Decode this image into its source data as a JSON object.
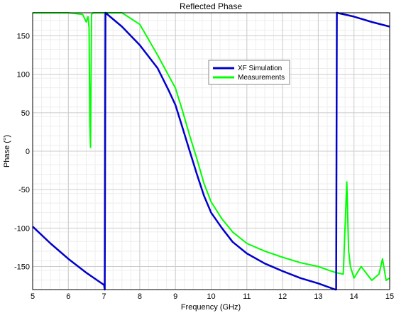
{
  "chart_data": {
    "type": "line",
    "title": "Reflected Phase",
    "xlabel": "Frequency (GHz)",
    "ylabel": "Phase (°)",
    "xlim": [
      5,
      15
    ],
    "ylim": [
      -180,
      180
    ],
    "xticks": [
      5,
      6,
      7,
      8,
      9,
      10,
      11,
      12,
      13,
      14,
      15
    ],
    "yticks": [
      150,
      100,
      50,
      0,
      -50,
      -100,
      -150
    ],
    "grid": true,
    "legend_position": "upper-center-right",
    "series": [
      {
        "name": "XF Simulation",
        "color": "#0000cc",
        "x": [
          5.0,
          5.5,
          6.0,
          6.5,
          7.0,
          7.02,
          7.04,
          7.5,
          8.0,
          8.5,
          8.8,
          9.0,
          9.2,
          9.4,
          9.6,
          9.8,
          10.0,
          10.3,
          10.6,
          11.0,
          11.5,
          12.0,
          12.5,
          13.0,
          13.48,
          13.5,
          13.52,
          14.0,
          14.5,
          15.0
        ],
        "y": [
          -98,
          -120,
          -140,
          -158,
          -174,
          -180,
          180,
          162,
          138,
          108,
          80,
          60,
          30,
          0,
          -30,
          -58,
          -80,
          -100,
          -118,
          -133,
          -146,
          -156,
          -165,
          -172,
          -180,
          -180,
          180,
          175,
          168,
          162
        ]
      },
      {
        "name": "Measurements",
        "color": "#00ff00",
        "x": [
          5.0,
          5.5,
          6.0,
          6.4,
          6.5,
          6.55,
          6.58,
          6.6,
          6.62,
          6.65,
          6.7,
          7.0,
          7.5,
          8.0,
          8.5,
          9.0,
          9.2,
          9.4,
          9.6,
          9.8,
          10.0,
          10.3,
          10.6,
          11.0,
          11.5,
          12.0,
          12.5,
          13.0,
          13.3,
          13.5,
          13.7,
          13.8,
          13.85,
          13.9,
          14.0,
          14.2,
          14.5,
          14.7,
          14.8,
          14.9,
          15.0
        ],
        "y": [
          180,
          180,
          180,
          178,
          168,
          175,
          160,
          40,
          5,
          178,
          180,
          180,
          180,
          165,
          125,
          82,
          52,
          20,
          -10,
          -42,
          -66,
          -88,
          -105,
          -120,
          -130,
          -138,
          -145,
          -150,
          -155,
          -158,
          -160,
          -40,
          -130,
          -150,
          -165,
          -150,
          -168,
          -160,
          -140,
          -168,
          -165
        ]
      }
    ]
  }
}
